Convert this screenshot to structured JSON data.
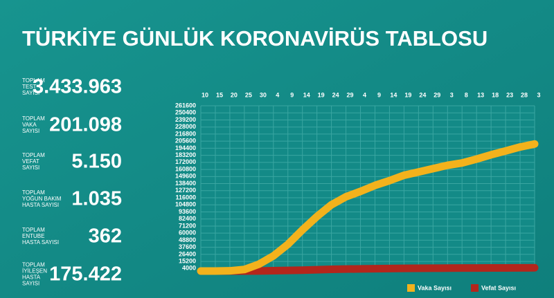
{
  "chart_data": {
    "type": "line",
    "title": "TÜRKİYE GÜNLÜK KORONAVİRÜS TABLOSU",
    "categories": [
      "10",
      "15",
      "20",
      "25",
      "30",
      "4",
      "9",
      "14",
      "19",
      "24",
      "29",
      "4",
      "9",
      "14",
      "19",
      "24",
      "29",
      "3",
      "8",
      "13",
      "18",
      "23",
      "28",
      "3"
    ],
    "series": [
      {
        "name": "Vaka Sayısı",
        "color": "#f3b21c",
        "values": [
          0,
          6,
          359,
          2433,
          10827,
          23934,
          42282,
          65111,
          86306,
          104912,
          117589,
          126045,
          135569,
          143114,
          151615,
          156827,
          162120,
          167410,
          171121,
          177239,
          184031,
          190165,
          196366,
          201098
        ]
      },
      {
        "name": "Vefat Sayısı",
        "color": "#b3261c",
        "values": [
          0,
          0,
          4,
          59,
          168,
          501,
          908,
          1403,
          2017,
          2706,
          3081,
          3397,
          3739,
          3952,
          4199,
          4340,
          4489,
          4609,
          4729,
          4825,
          4882,
          4974,
          5065,
          5150
        ]
      }
    ],
    "ylim": [
      0,
      261600
    ],
    "yticks": [
      4000,
      15200,
      26400,
      37600,
      48800,
      60000,
      71200,
      82400,
      93600,
      104800,
      116000,
      127200,
      138400,
      149600,
      160800,
      172000,
      183200,
      194400,
      205600,
      216800,
      228000,
      239200,
      250400,
      261600
    ],
    "grid": true
  },
  "stats": [
    {
      "label": [
        "TOPLAM",
        "TEST",
        "SAYISI"
      ],
      "value": "3.433.963"
    },
    {
      "label": [
        "TOPLAM",
        "VAKA",
        "SAYISI"
      ],
      "value": "201.098"
    },
    {
      "label": [
        "TOPLAM",
        "VEFAT",
        "SAYISI"
      ],
      "value": "5.150"
    },
    {
      "label": [
        "TOPLAM",
        "YOĞUN BAKIM",
        "HASTA SAYISI"
      ],
      "value": "1.035"
    },
    {
      "label": [
        "TOPLAM",
        "ENTUBE",
        "HASTA SAYISI"
      ],
      "value": "362"
    },
    {
      "label": [
        "TOPLAM",
        "İYİLEŞEN",
        "HASTA",
        "SAYISI"
      ],
      "value": "175.422"
    }
  ]
}
